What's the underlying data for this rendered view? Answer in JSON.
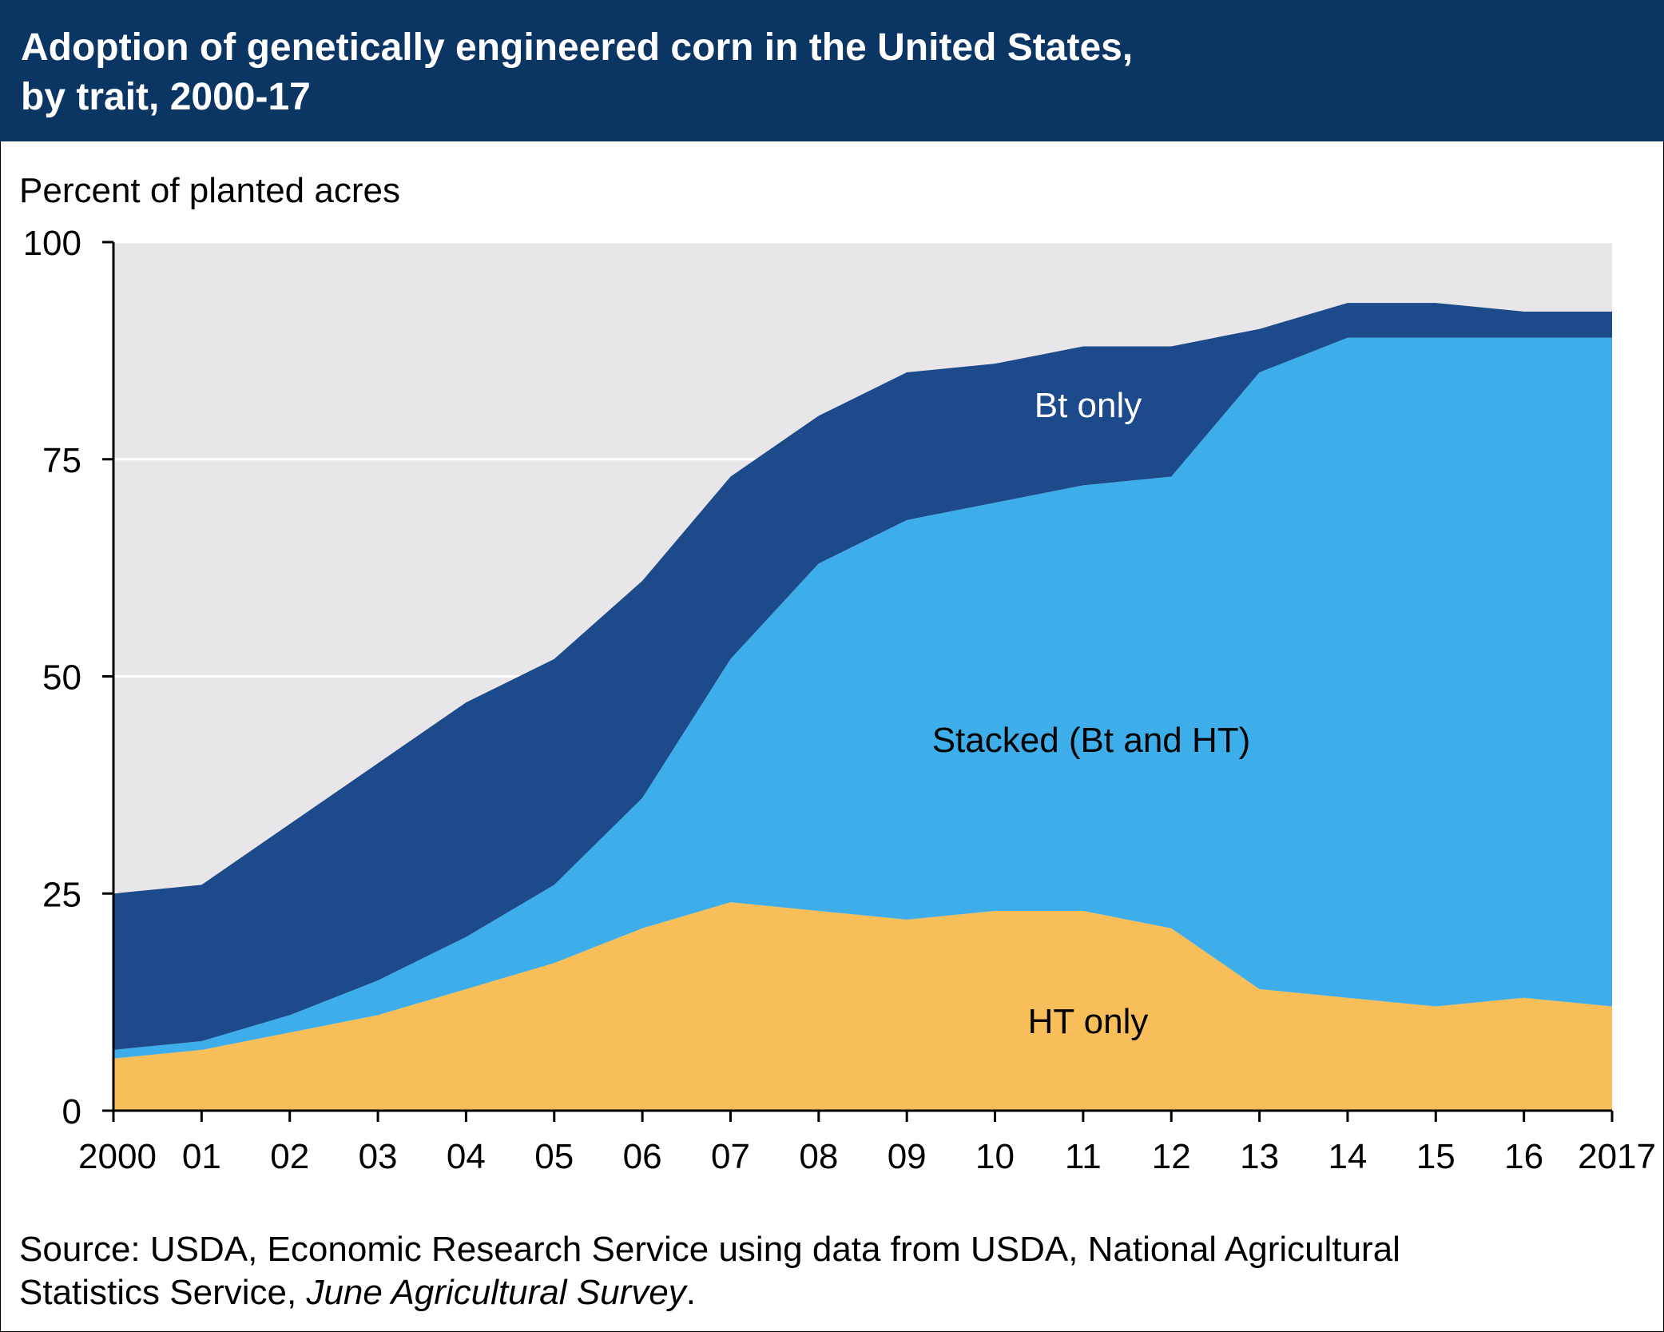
{
  "chart_data": {
    "type": "stacked-area",
    "title": [
      "Adoption of genetically engineered corn in the United States,",
      "by trait, 2000-17"
    ],
    "y_label": "Percent of planted acres",
    "categories": [
      "2000",
      "01",
      "02",
      "03",
      "04",
      "05",
      "06",
      "07",
      "08",
      "09",
      "10",
      "11",
      "12",
      "13",
      "14",
      "15",
      "16",
      "2017"
    ],
    "series": [
      {
        "name": "HT only",
        "color": "#f8be5a",
        "values": [
          6,
          7,
          9,
          11,
          14,
          17,
          21,
          24,
          23,
          22,
          23,
          23,
          21,
          14,
          13,
          12,
          13,
          12
        ]
      },
      {
        "name": "Stacked (Bt and HT)",
        "color": "#3daee9",
        "values": [
          1,
          1,
          2,
          4,
          6,
          9,
          15,
          28,
          40,
          46,
          47,
          49,
          52,
          71,
          76,
          77,
          76,
          77
        ]
      },
      {
        "name": "Bt only",
        "color": "#1c4a8a",
        "values": [
          18,
          18,
          22,
          25,
          27,
          26,
          25,
          21,
          17,
          17,
          16,
          16,
          15,
          5,
          4,
          4,
          3,
          3
        ]
      }
    ],
    "ylim": [
      0,
      100
    ],
    "yticks": [
      0,
      25,
      50,
      75,
      100
    ],
    "grid": true,
    "source": {
      "line1": "Source: USDA, Economic Research Service using data from USDA, National Agricultural",
      "line2": "Statistics Service, ",
      "italic": "June Agricultural Survey",
      "end": "."
    }
  }
}
